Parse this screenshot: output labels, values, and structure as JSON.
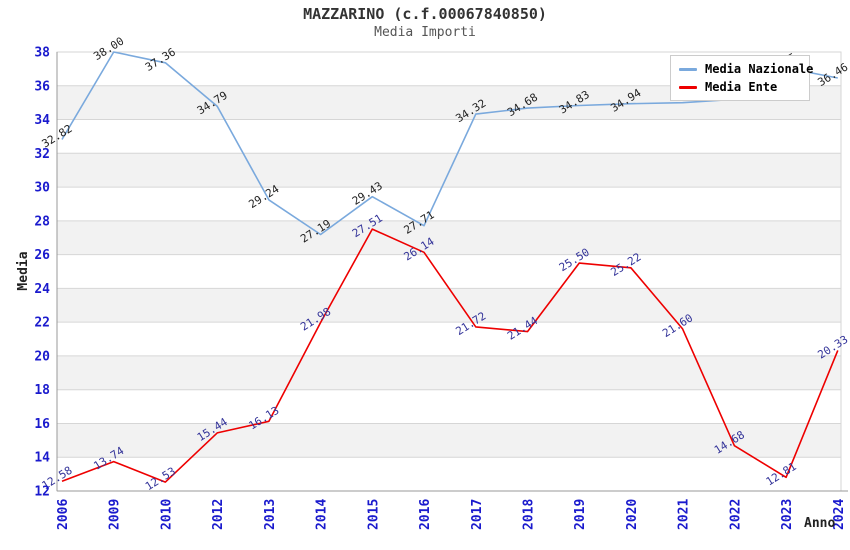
{
  "chart_data": {
    "type": "line",
    "title": "MAZZARINO (c.f.00067840850)",
    "subtitle": "Media Importi",
    "xlabel": "Anno",
    "ylabel": "Media",
    "ylim": [
      12,
      38
    ],
    "ytick_step": 2,
    "grid": "horizontal gridlines with alternating gray bands every 2 units",
    "legend_position": "top-right",
    "categories": [
      "2006",
      "2009",
      "2010",
      "2012",
      "2013",
      "2014",
      "2015",
      "2016",
      "2017",
      "2018",
      "2019",
      "2020",
      "2021",
      "2022",
      "2023",
      "2024"
    ],
    "series": [
      {
        "name": "Media Nazionale",
        "color": "#7aa9dd",
        "label_color": "#222222",
        "values": [
          32.82,
          38.0,
          37.36,
          34.79,
          29.24,
          27.19,
          29.43,
          27.71,
          34.32,
          34.68,
          34.83,
          34.94,
          35.0,
          35.2,
          37.05,
          36.46
        ],
        "labels": [
          "32.82",
          "38.00",
          "37.36",
          "34.79",
          "29.24",
          "27.19",
          "29.43",
          "27.71",
          "34.32",
          "34.68",
          "34.83",
          "34.94",
          "",
          "",
          "37.05",
          "36.46"
        ]
      },
      {
        "name": "Media Ente",
        "color": "#ee0000",
        "label_color": "#333399",
        "values": [
          12.58,
          13.74,
          12.53,
          15.44,
          16.13,
          21.98,
          27.51,
          26.14,
          21.72,
          21.44,
          25.5,
          25.22,
          21.6,
          14.68,
          12.81,
          20.33
        ],
        "labels": [
          "12.58",
          "13.74",
          "12.53",
          "15.44",
          "16.13",
          "21.98",
          "27.51",
          "26.14",
          "21.72",
          "21.44",
          "25.50",
          "25.22",
          "21.60",
          "14.68",
          "12.81",
          "20.33"
        ]
      }
    ],
    "colors": {
      "tick_label": "#1a1acd",
      "axis_title": "#222222",
      "band": "#f2f2f2",
      "gridline": "#d6d6d6",
      "axis_line": "#999999",
      "legend_border": "#cccccc",
      "background": "#ffffff"
    }
  }
}
